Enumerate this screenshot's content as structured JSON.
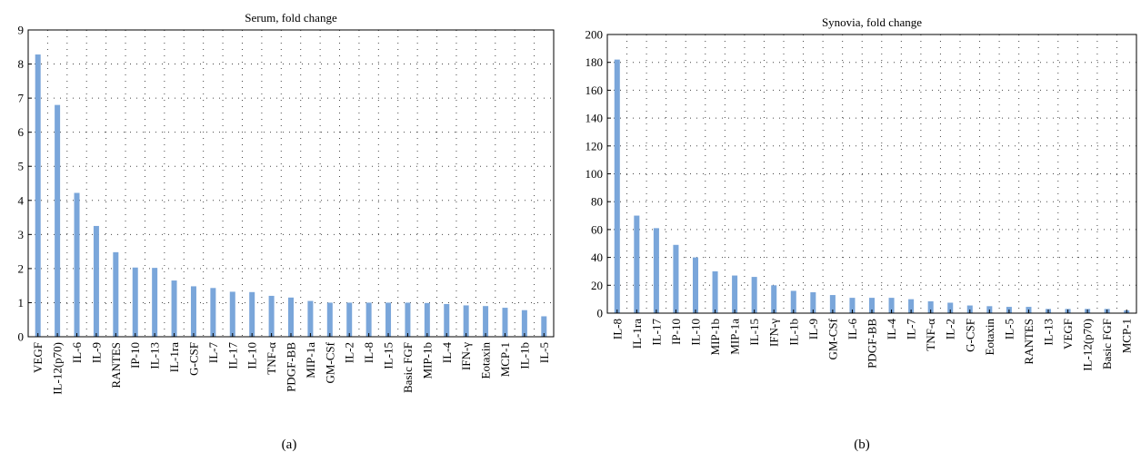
{
  "chart_data": [
    {
      "type": "bar",
      "title": "Serum, fold change",
      "caption": "(a)",
      "categories": [
        "VEGF",
        "IL-12(p70)",
        "IL-6",
        "IL-9",
        "RANTES",
        "IP-10",
        "IL-13",
        "IL-1ra",
        "G-CSF",
        "IL-7",
        "IL-17",
        "IL-10",
        "TNF-α",
        "PDGF-BB",
        "MIP-1a",
        "GM-CSf",
        "IL-2",
        "IL-8",
        "IL-15",
        "Basic FGF",
        "MIP-1b",
        "IL-4",
        "IFN-γ",
        "Eotaxin",
        "MCP-1",
        "IL-1b",
        "IL-5"
      ],
      "values": [
        8.28,
        6.8,
        4.22,
        3.25,
        2.48,
        2.03,
        2.02,
        1.65,
        1.48,
        1.43,
        1.32,
        1.31,
        1.2,
        1.15,
        1.05,
        1.0,
        1.0,
        1.0,
        1.0,
        1.0,
        0.99,
        0.96,
        0.92,
        0.9,
        0.85,
        0.78,
        0.6
      ],
      "yticks": [
        0,
        1,
        2,
        3,
        4,
        5,
        6,
        7,
        8,
        9
      ],
      "ylim": [
        0,
        9
      ],
      "grid": true,
      "color": "#7aa6da"
    },
    {
      "type": "bar",
      "title": "Synovia, fold change",
      "caption": "(b)",
      "categories": [
        "IL-8",
        "IL-1ra",
        "IL-17",
        "IP-10",
        "IL-10",
        "MIP-1b",
        "MIP-1a",
        "IL-15",
        "IFN-γ",
        "IL-1b",
        "IL-9",
        "GM-CSf",
        "IL-6",
        "PDGF-BB",
        "IL-4",
        "IL-7",
        "TNF-α",
        "IL-2",
        "G-CSF",
        "Eotaxin",
        "IL-5",
        "RANTES",
        "IL-13",
        "VEGF",
        "IL-12(p70)",
        "Basic FGF",
        "MCP-1"
      ],
      "values": [
        182,
        70,
        61,
        49,
        40,
        30,
        27,
        26,
        20,
        16,
        15,
        13,
        11,
        11,
        11,
        10,
        8.5,
        7.5,
        5.5,
        5,
        4.5,
        4.5,
        3,
        3,
        3,
        3,
        2
      ],
      "yticks": [
        0,
        20,
        40,
        60,
        80,
        100,
        120,
        140,
        160,
        180,
        200
      ],
      "ylim": [
        0,
        200
      ],
      "grid": true,
      "color": "#7aa6da"
    }
  ]
}
